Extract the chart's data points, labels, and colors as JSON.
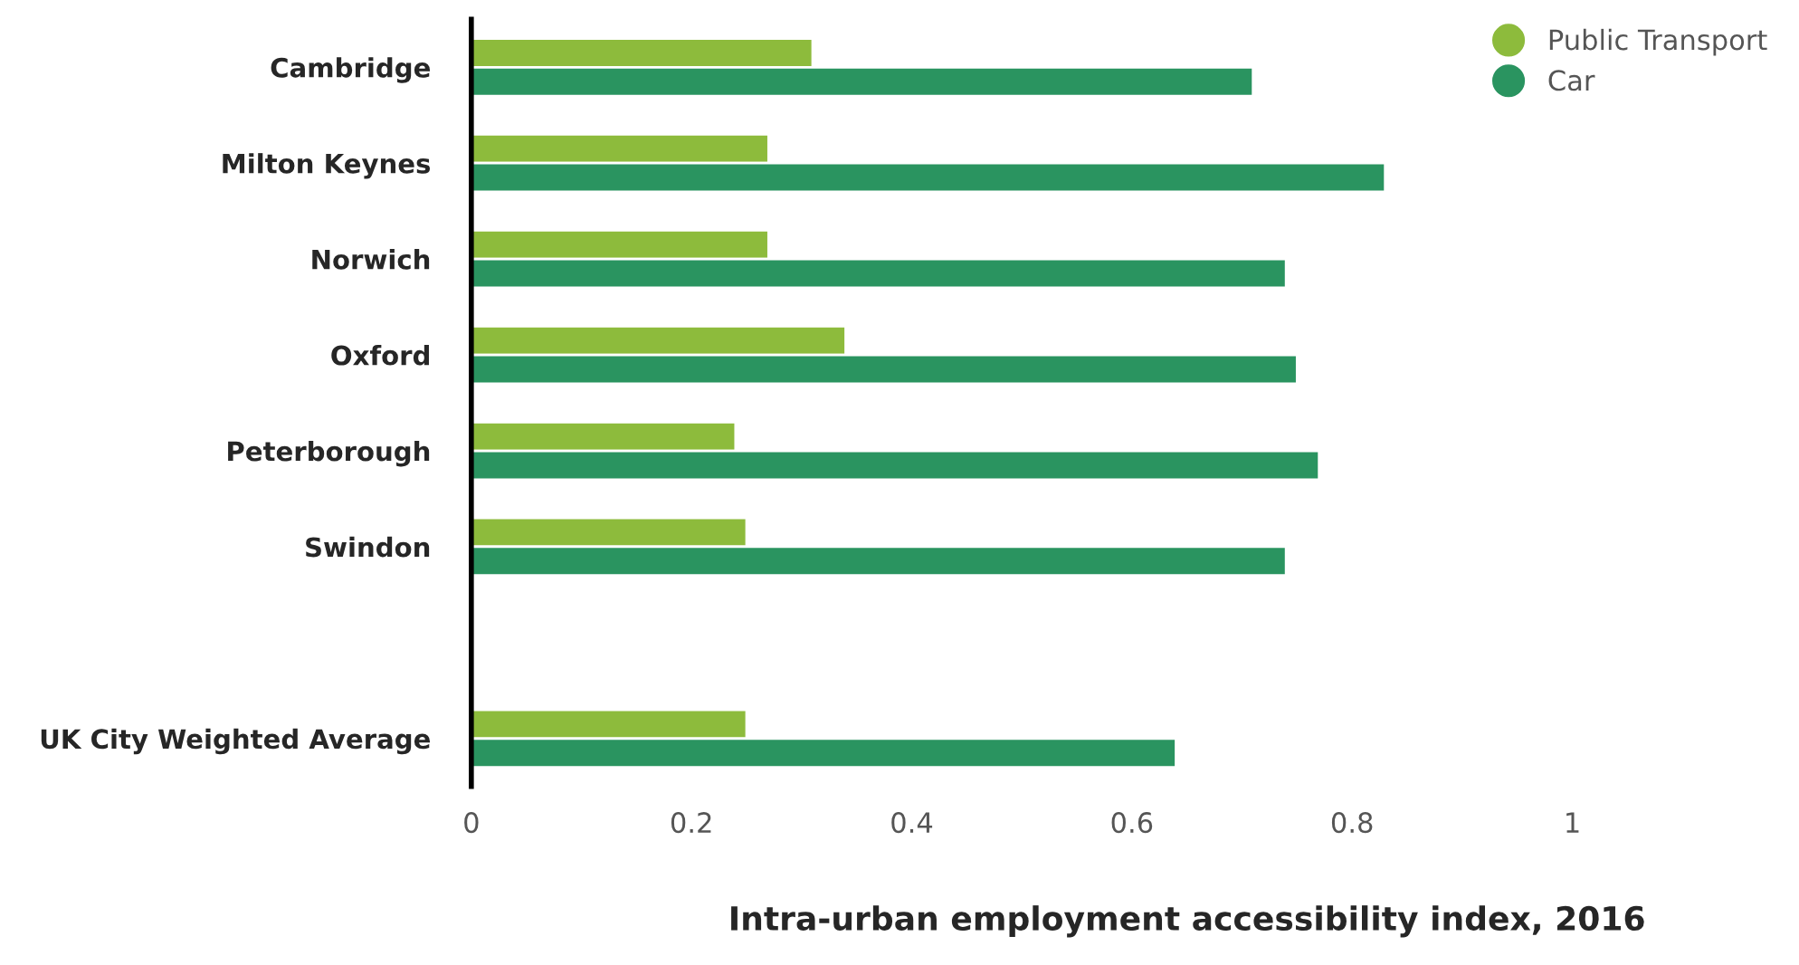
{
  "chart_data": {
    "type": "bar",
    "orientation": "horizontal",
    "xlabel": "Intra-urban employment accessibility index, 2016",
    "categories": [
      "Cambridge",
      "Milton Keynes",
      "Norwich",
      "Oxford",
      "Peterborough",
      "Swindon",
      null,
      "UK City Weighted Average"
    ],
    "series": [
      {
        "name": "Public Transport",
        "color": "#8dbb3c",
        "values": [
          0.31,
          0.27,
          0.27,
          0.34,
          0.24,
          0.25,
          null,
          0.25
        ]
      },
      {
        "name": "Car",
        "color": "#2a9460",
        "values": [
          0.71,
          0.83,
          0.74,
          0.75,
          0.77,
          0.74,
          null,
          0.64
        ]
      }
    ],
    "xlim": [
      0,
      1
    ],
    "xticks": [
      0,
      0.2,
      0.4,
      0.6,
      0.8,
      1
    ],
    "grid": false,
    "legend": "top right"
  }
}
